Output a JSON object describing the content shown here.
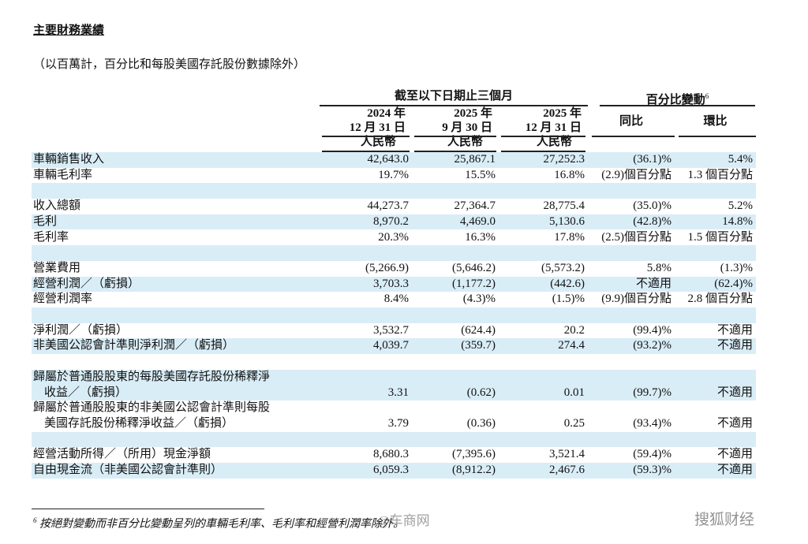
{
  "title": "主要財務業績",
  "subtitle": "（以百萬計，百分比和每股美國存託股份數據除外）",
  "header": {
    "period_group": "截至以下日期止三個月",
    "change_group": "百分比變動",
    "change_note": "6",
    "periods": [
      [
        "2024 年",
        "12 月 31 日",
        "人民幣"
      ],
      [
        "2025 年",
        "9 月 30 日",
        "人民幣"
      ],
      [
        "2025 年",
        "12 月 31 日",
        "人民幣"
      ]
    ],
    "changes": [
      "同比",
      "環比"
    ]
  },
  "groups": [
    [
      {
        "label": [
          "車輛銷售收入"
        ],
        "cells": [
          "42,643.0",
          "25,867.1",
          "27,252.3",
          "(36.1)%",
          "5.4%"
        ]
      },
      {
        "label": [
          "車輛毛利率"
        ],
        "cells": [
          "19.7%",
          "15.5%",
          "16.8%",
          "(2.9)個百分點",
          "1.3 個百分點"
        ]
      }
    ],
    [
      {
        "label": [
          "收入總額"
        ],
        "cells": [
          "44,273.7",
          "27,364.7",
          "28,775.4",
          "(35.0)%",
          "5.2%"
        ]
      },
      {
        "label": [
          "毛利"
        ],
        "cells": [
          "8,970.2",
          "4,469.0",
          "5,130.6",
          "(42.8)%",
          "14.8%"
        ]
      },
      {
        "label": [
          "毛利率"
        ],
        "cells": [
          "20.3%",
          "16.3%",
          "17.8%",
          "(2.5)個百分點",
          "1.5 個百分點"
        ]
      }
    ],
    [
      {
        "label": [
          "營業費用"
        ],
        "cells": [
          "(5,266.9)",
          "(5,646.2)",
          "(5,573.2)",
          "5.8%",
          "(1.3)%"
        ]
      },
      {
        "label": [
          "經營利潤／（虧損）"
        ],
        "cells": [
          "3,703.3",
          "(1,177.2)",
          "(442.6)",
          "不適用",
          "(62.4)%"
        ]
      },
      {
        "label": [
          "經營利潤率"
        ],
        "cells": [
          "8.4%",
          "(4.3)%",
          "(1.5)%",
          "(9.9)個百分點",
          "2.8 個百分點"
        ]
      }
    ],
    [
      {
        "label": [
          "淨利潤／（虧損）"
        ],
        "cells": [
          "3,532.7",
          "(624.4)",
          "20.2",
          "(99.4)%",
          "不適用"
        ]
      },
      {
        "label": [
          "非美國公認會計準則淨利潤／（虧損）"
        ],
        "cells": [
          "4,039.7",
          "(359.7)",
          "274.4",
          "(93.2)%",
          "不適用"
        ]
      }
    ],
    [
      {
        "label": [
          "歸屬於普通股股東的每股美國存託股份稀釋淨",
          "收益／（虧損）"
        ],
        "cells": [
          "3.31",
          "(0.62)",
          "0.01",
          "(99.7)%",
          "不適用"
        ]
      },
      {
        "label": [
          "歸屬於普通股股東的非美國公認會計準則每股",
          "美國存託股份稀釋淨收益／（虧損）"
        ],
        "cells": [
          "3.79",
          "(0.36)",
          "0.25",
          "(93.4)%",
          "不適用"
        ]
      }
    ],
    [
      {
        "label": [
          "經營活動所得／（所用）現金淨額"
        ],
        "cells": [
          "8,680.3",
          "(7,395.6)",
          "3,521.4",
          "(59.4)%",
          "不適用"
        ]
      },
      {
        "label": [
          "自由現金流（非美國公認會計準則）"
        ],
        "cells": [
          "6,059.3",
          "(8,912.2)",
          "2,467.6",
          "(59.3)%",
          "不適用"
        ]
      }
    ]
  ],
  "footnote": {
    "mark": "6",
    "text": "按絕對變動而非百分比變動呈列的車輛毛利率、毛利率和經營利潤率除外。"
  },
  "watermarks": [
    "@车商网",
    "搜狐财经"
  ]
}
